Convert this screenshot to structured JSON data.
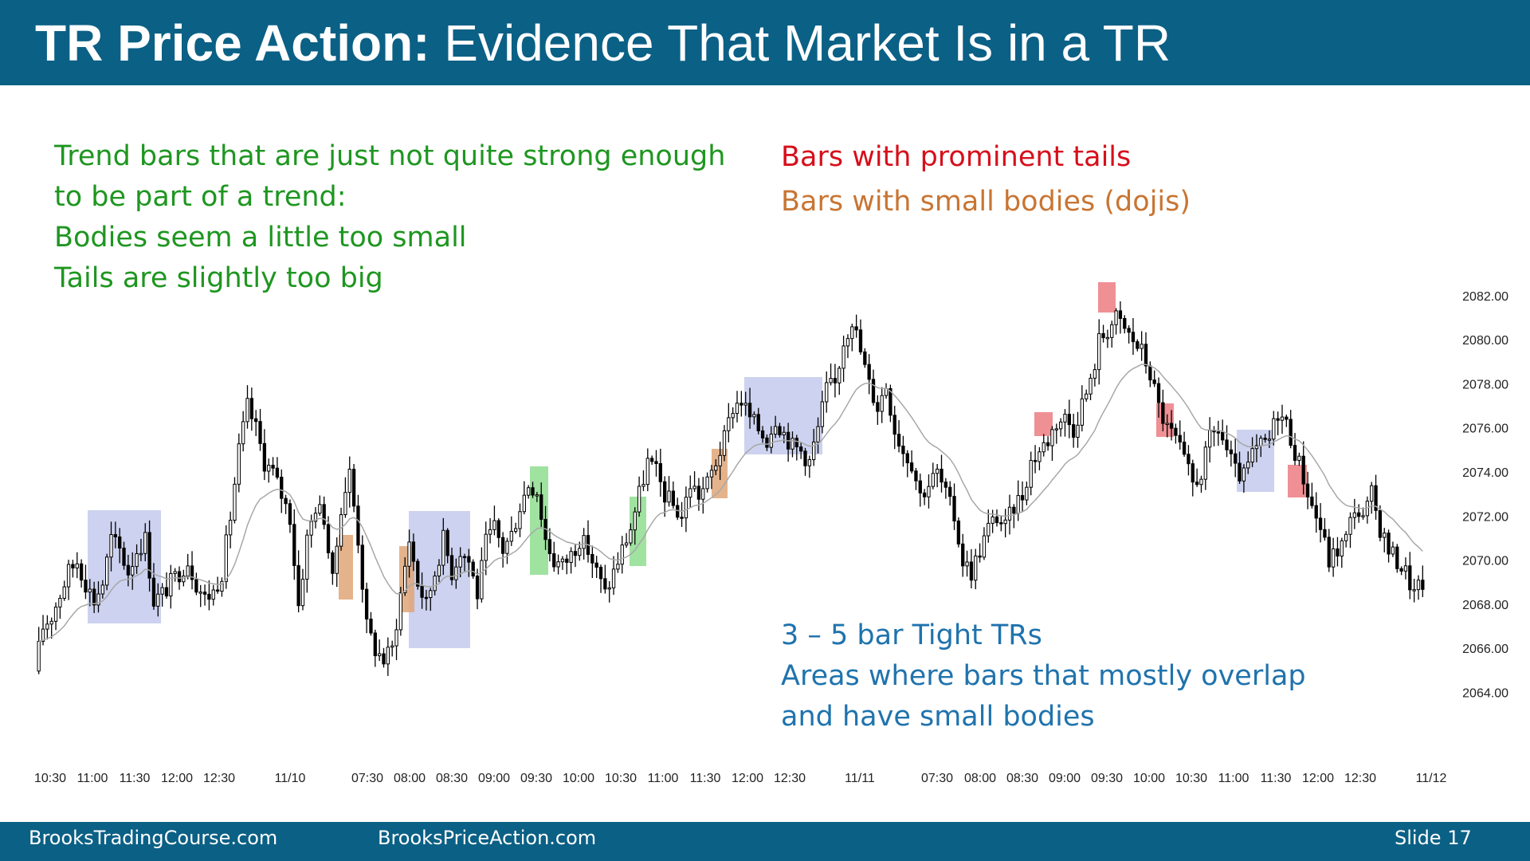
{
  "header": {
    "title_bold": "TR Price Action:",
    "title_rest": "Evidence That Market Is in a TR"
  },
  "notes": {
    "green": [
      "Trend bars that are just not quite strong enough",
      "to be part of a trend:",
      "Bodies seem a little too small",
      "Tails are slightly too big"
    ],
    "tails": "Bars with prominent tails",
    "dojis": "Bars with small bodies (dojis)",
    "tight_trs": [
      "3 – 5 bar Tight TRs",
      "Areas where bars that mostly overlap",
      "and have small bodies"
    ]
  },
  "footer": {
    "site1": "BrooksTradingCourse.com",
    "site2": "BrooksPriceAction.com",
    "slide": "Slide  17"
  },
  "colors": {
    "header": "#0b6085",
    "green": "#1e9620",
    "red": "#d60f1b",
    "orange": "#c87533",
    "blue": "#1f73ad",
    "tr_box": "#c9d0ee",
    "tail_box": "#ec7d83",
    "doji_box": "#dfa678",
    "trend_box": "#8fdd8f"
  },
  "chart_data": {
    "type": "candlestick",
    "ylim": [
      2063,
      2083.3
    ],
    "y_ticks": [
      "2082.00",
      "2080.00",
      "2078.00",
      "2076.00",
      "2074.00",
      "2072.00",
      "2070.00",
      "2068.00",
      "2066.00",
      "2064.00"
    ],
    "x_ticks": [
      "10:30",
      "11:00",
      "11:30",
      "12:00",
      "12:30",
      "11/10",
      "07:30",
      "08:00",
      "08:30",
      "09:00",
      "09:30",
      "10:00",
      "10:30",
      "11:00",
      "11:30",
      "12:00",
      "12:30",
      "11/11",
      "07:30",
      "08:00",
      "08:30",
      "09:00",
      "09:30",
      "10:00",
      "10:30",
      "11:00",
      "11:30",
      "12:00",
      "12:30",
      "11/12"
    ],
    "price_path": [
      2065.0,
      2067.0,
      2067.5,
      2068.5,
      2069.5,
      2070.0,
      2069.0,
      2068.2,
      2069.0,
      2071.0,
      2070.5,
      2069.5,
      2070.5,
      2071.0,
      2068.2,
      2068.5,
      2069.0,
      2069.5,
      2070.0,
      2069.0,
      2068.3,
      2068.6,
      2069.5,
      2072.0,
      2075.0,
      2077.0,
      2076.0,
      2074.5,
      2074.0,
      2073.0,
      2072.0,
      2068.0,
      2071.0,
      2072.5,
      2072.0,
      2069.0,
      2072.5,
      2074.0,
      2071.0,
      2067.0,
      2066.0,
      2065.5,
      2066.0,
      2068.5,
      2071.0,
      2069.0,
      2068.0,
      2069.5,
      2071.0,
      2069.5,
      2070.5,
      2070.0,
      2068.5,
      2070.8,
      2071.5,
      2070.5,
      2071.2,
      2072.5,
      2073.5,
      2073.2,
      2071.0,
      2070.0,
      2069.8,
      2070.3,
      2071.0,
      2070.5,
      2069.5,
      2068.5,
      2069.5,
      2070.5,
      2071.5,
      2073.0,
      2074.5,
      2074.0,
      2073.0,
      2072.5,
      2072.0,
      2073.5,
      2073.0,
      2073.5,
      2074.5,
      2075.5,
      2077.0,
      2077.3,
      2076.5,
      2076.0,
      2075.5,
      2076.5,
      2075.8,
      2075.2,
      2075.0,
      2074.5,
      2076.0,
      2077.8,
      2078.0,
      2080.0,
      2081.0,
      2079.5,
      2078.0,
      2077.0,
      2078.0,
      2076.0,
      2075.0,
      2074.5,
      2073.0,
      2073.5,
      2074.0,
      2073.0,
      2072.0,
      2070.0,
      2069.5,
      2070.5,
      2071.5,
      2072.0,
      2071.5,
      2072.5,
      2073.0,
      2074.5,
      2075.0,
      2075.5,
      2076.3,
      2076.5,
      2076.0,
      2077.2,
      2078.0,
      2080.0,
      2080.5,
      2081.0,
      2080.5,
      2080.0,
      2079.5,
      2078.5,
      2077.0,
      2076.0,
      2075.5,
      2074.5,
      2073.5,
      2074.0,
      2075.5,
      2076.0,
      2075.0,
      2074.0,
      2073.8,
      2074.8,
      2075.2,
      2075.5,
      2076.8,
      2076.2,
      2075.0,
      2073.8,
      2072.5,
      2071.5,
      2070.0,
      2070.5,
      2071.0,
      2072.5,
      2071.8,
      2073.0,
      2071.5,
      2070.5,
      2070.0,
      2069.5,
      2068.5,
      2069.0
    ]
  }
}
